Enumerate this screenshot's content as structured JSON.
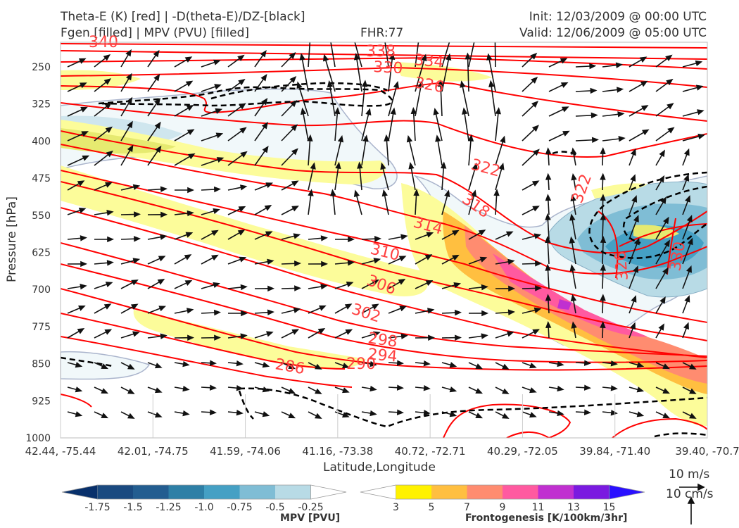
{
  "header": {
    "title_left_1": "Theta-E (K) [red] | -D(theta-E)/DZ-[black]",
    "title_left_2": "Fgen [filled] | MPV (PVU) [filled]",
    "fhr": "FHR:77",
    "init": "Init: 12/03/2009 @ 00:00 UTC",
    "valid": "Valid: 12/06/2009 @ 05:00 UTC"
  },
  "chart_data": {
    "type": "cross-section",
    "ylabel": "Pressure [hPa]",
    "xlabel": "Latitude,Longitude",
    "y_ticks": [
      250,
      325,
      400,
      475,
      550,
      625,
      700,
      775,
      850,
      925,
      1000
    ],
    "x_ticks": [
      "42.44, -75.44",
      "42.01, -74.75",
      "41.59, -74.06",
      "41.16, -73.38",
      "40.72, -72.71",
      "40.29, -72.05",
      "39.84, -71.40",
      "39.40, -70.7"
    ],
    "theta_e_labels": [
      "340",
      "338",
      "334",
      "330",
      "326",
      "322",
      "322",
      "318",
      "314",
      "310",
      "306",
      "302",
      "298",
      "294",
      "290",
      "286",
      "326",
      "330"
    ],
    "theta_e_color": "#ff0000",
    "stability_color": "#000000",
    "mpv_colorbar": {
      "title": "MPV [PVU]",
      "ticks": [
        "-1.75",
        "-1.5",
        "-1.25",
        "-1.0",
        "-0.75",
        "-0.5",
        "-0.25"
      ],
      "colors": [
        "#08306b",
        "#1a4a80",
        "#235d90",
        "#2e7fa6",
        "#45a0c4",
        "#7fbdd5",
        "#b8dbe6",
        "#ffffff"
      ]
    },
    "fgen_colorbar": {
      "title": "Frontogenesis [K/100km/3hr]",
      "ticks": [
        "3",
        "5",
        "7",
        "9",
        "11",
        "13",
        "15"
      ],
      "colors": [
        "#ffffff",
        "#fff200",
        "#ffbf40",
        "#ff8c70",
        "#ff5aa0",
        "#c030d0",
        "#7a1ae0",
        "#2a10ff"
      ]
    },
    "wind_reference": {
      "horizontal": "10 m/s",
      "vertical": "10 cm/s"
    }
  }
}
